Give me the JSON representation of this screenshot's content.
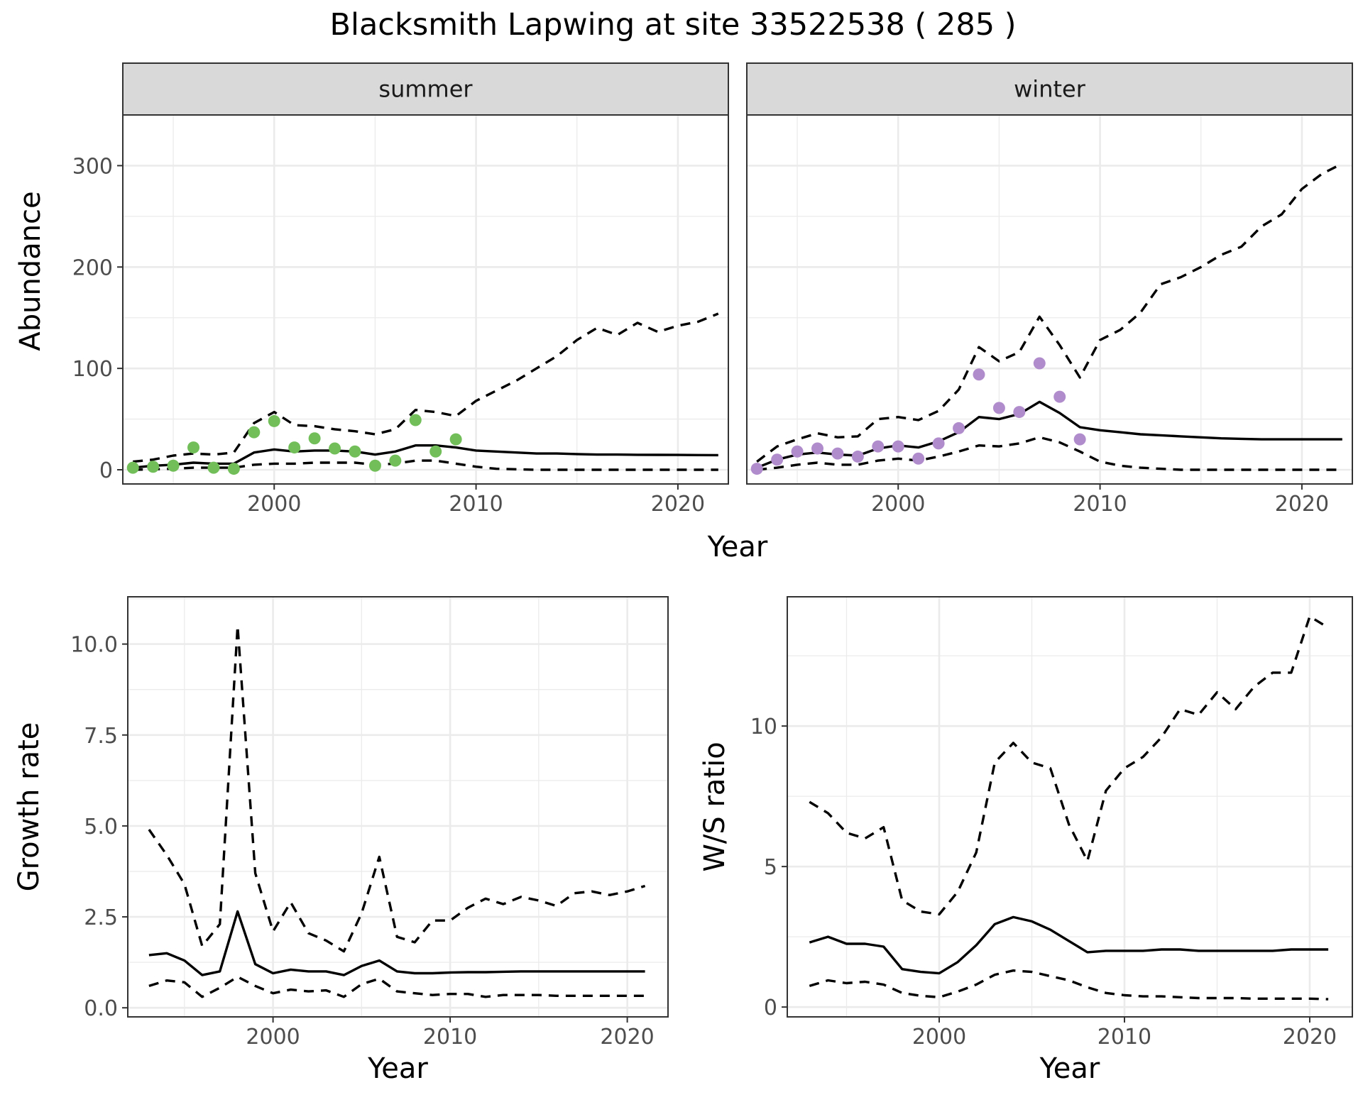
{
  "title": "Blacksmith Lapwing at site 33522538 ( 285 )",
  "colors": {
    "summer_points": "#72bf5a",
    "winter_points": "#b08ccc",
    "strip_background": "#d9d9d9",
    "grid": "#ebebeb"
  },
  "chart_data": [
    {
      "type": "line",
      "facet": "summer",
      "xlabel": "Year",
      "ylabel": "Abundance",
      "xlim": [
        1992.5,
        2022.5
      ],
      "ylim": [
        -14,
        350
      ],
      "xticks": [
        2000,
        2010,
        2020
      ],
      "yticks": [
        0,
        100,
        200,
        300
      ],
      "grid": true,
      "series": [
        {
          "role": "estimate",
          "x": [
            1993,
            1994,
            1995,
            1996,
            1997,
            1998,
            1999,
            2000,
            2001,
            2002,
            2003,
            2004,
            2005,
            2006,
            2007,
            2008,
            2009,
            2010,
            2011,
            2012,
            2013,
            2014,
            2015,
            2016,
            2017,
            2018,
            2019,
            2020,
            2021,
            2022
          ],
          "y": [
            2,
            4,
            5,
            7,
            6,
            6,
            17,
            20,
            18,
            19,
            19,
            18,
            15,
            18,
            24,
            24,
            22,
            19,
            18,
            17,
            16,
            16,
            15.5,
            15,
            15,
            14.8,
            14.7,
            14.6,
            14.5,
            14.4
          ]
        },
        {
          "role": "lower",
          "x": [
            1993,
            1994,
            1995,
            1996,
            1997,
            1998,
            1999,
            2000,
            2001,
            2002,
            2003,
            2004,
            2005,
            2006,
            2007,
            2008,
            2009,
            2010,
            2011,
            2012,
            2013,
            2014,
            2015,
            2016,
            2017,
            2018,
            2019,
            2020,
            2021,
            2022
          ],
          "y": [
            0,
            0.5,
            1,
            2,
            2,
            2,
            5,
            6,
            6,
            7,
            7,
            7,
            5,
            6,
            9,
            9,
            6,
            3,
            1,
            0.5,
            0,
            0,
            0,
            0,
            0,
            0,
            0,
            0,
            0,
            0
          ]
        },
        {
          "role": "upper",
          "x": [
            1993,
            1994,
            1995,
            1996,
            1997,
            1998,
            1999,
            2000,
            2001,
            2002,
            2003,
            2004,
            2005,
            2006,
            2007,
            2008,
            2009,
            2010,
            2011,
            2012,
            2013,
            2014,
            2015,
            2016,
            2017,
            2018,
            2019,
            2020,
            2021,
            2022
          ],
          "y": [
            8,
            10,
            14,
            16,
            15,
            17,
            46,
            57,
            44,
            43,
            40,
            38,
            35,
            40,
            59,
            57,
            53,
            68,
            78,
            88,
            100,
            112,
            128,
            140,
            133,
            145,
            136,
            142,
            146,
            154
          ]
        },
        {
          "role": "observed",
          "x": [
            1993,
            1994,
            1995,
            1996,
            1997,
            1998,
            1999,
            2000,
            2001,
            2002,
            2003,
            2004,
            2005,
            2006,
            2007,
            2008,
            2009
          ],
          "y": [
            2,
            3,
            4,
            22,
            2,
            1,
            37,
            48,
            22,
            31,
            21,
            18,
            4,
            9,
            49,
            18,
            30
          ]
        }
      ]
    },
    {
      "type": "line",
      "facet": "winter",
      "xlabel": "Year",
      "ylabel": "Abundance",
      "xlim": [
        1992.5,
        2022.5
      ],
      "ylim": [
        -14,
        350
      ],
      "xticks": [
        2000,
        2010,
        2020
      ],
      "yticks": [
        0,
        100,
        200,
        300
      ],
      "grid": true,
      "series": [
        {
          "role": "estimate",
          "x": [
            1993,
            1994,
            1995,
            1996,
            1997,
            1998,
            1999,
            2000,
            2001,
            2002,
            2003,
            2004,
            2005,
            2006,
            2007,
            2008,
            2009,
            2010,
            2011,
            2012,
            2013,
            2014,
            2015,
            2016,
            2017,
            2018,
            2019,
            2020,
            2021,
            2022
          ],
          "y": [
            2,
            10,
            15,
            17,
            15,
            14,
            21,
            24,
            22,
            28,
            37,
            52,
            50,
            55,
            67,
            56,
            42,
            39,
            37,
            35,
            34,
            33,
            32,
            31,
            30.5,
            30,
            30,
            30,
            30,
            30
          ]
        },
        {
          "role": "lower",
          "x": [
            1993,
            1994,
            1995,
            1996,
            1997,
            1998,
            1999,
            2000,
            2001,
            2002,
            2003,
            2004,
            2005,
            2006,
            2007,
            2008,
            2009,
            2010,
            2011,
            2012,
            2013,
            2014,
            2015,
            2016,
            2017,
            2018,
            2019,
            2020,
            2021,
            2022
          ],
          "y": [
            0,
            2,
            5,
            7,
            5,
            5,
            9,
            11,
            9,
            13,
            18,
            24,
            23,
            26,
            32,
            27,
            18,
            8,
            4,
            2,
            1,
            0,
            0,
            0,
            0,
            0,
            0,
            0,
            0,
            0
          ]
        },
        {
          "role": "upper",
          "x": [
            1993,
            1994,
            1995,
            1996,
            1997,
            1998,
            1999,
            2000,
            2001,
            2002,
            2003,
            2004,
            2005,
            2006,
            2007,
            2008,
            2009,
            2010,
            2011,
            2012,
            2013,
            2014,
            2015,
            2016,
            2017,
            2018,
            2019,
            2020,
            2021,
            2022
          ],
          "y": [
            8,
            23,
            30,
            36,
            32,
            33,
            50,
            52,
            49,
            58,
            79,
            121,
            107,
            116,
            151,
            123,
            91,
            128,
            138,
            155,
            183,
            190,
            200,
            212,
            220,
            240,
            252,
            277,
            292,
            302
          ]
        },
        {
          "role": "observed",
          "x": [
            1993,
            1994,
            1995,
            1996,
            1997,
            1998,
            1999,
            2000,
            2001,
            2002,
            2003,
            2004,
            2005,
            2006,
            2007,
            2008,
            2009
          ],
          "y": [
            1,
            10,
            18,
            21,
            16,
            13,
            23,
            23,
            11,
            26,
            41,
            94,
            61,
            57,
            105,
            72,
            30
          ]
        }
      ]
    },
    {
      "type": "line",
      "xlabel": "Year",
      "ylabel": "Growth rate",
      "xlim": [
        1991.8,
        2022.3
      ],
      "ylim": [
        -0.25,
        11.3
      ],
      "xticks": [
        2000,
        2010,
        2020
      ],
      "yticks": [
        0.0,
        2.5,
        5.0,
        7.5,
        10.0
      ],
      "ytick_labels": [
        "0.0",
        "2.5",
        "5.0",
        "7.5",
        "10.0"
      ],
      "grid": true,
      "series": [
        {
          "role": "estimate",
          "x": [
            1993,
            1994,
            1995,
            1996,
            1997,
            1998,
            1999,
            2000,
            2001,
            2002,
            2003,
            2004,
            2005,
            2006,
            2007,
            2008,
            2009,
            2010,
            2011,
            2012,
            2013,
            2014,
            2015,
            2016,
            2017,
            2018,
            2019,
            2020,
            2021
          ],
          "y": [
            1.45,
            1.5,
            1.3,
            0.9,
            1.0,
            2.65,
            1.2,
            0.95,
            1.05,
            1.0,
            1.0,
            0.9,
            1.15,
            1.3,
            1.0,
            0.95,
            0.95,
            0.97,
            0.98,
            0.98,
            0.99,
            1.0,
            1.0,
            1.0,
            1.0,
            1.0,
            1.0,
            1.0,
            1.0
          ]
        },
        {
          "role": "lower",
          "x": [
            1993,
            1994,
            1995,
            1996,
            1997,
            1998,
            1999,
            2000,
            2001,
            2002,
            2003,
            2004,
            2005,
            2006,
            2007,
            2008,
            2009,
            2010,
            2011,
            2012,
            2013,
            2014,
            2015,
            2016,
            2017,
            2018,
            2019,
            2020,
            2021
          ],
          "y": [
            0.6,
            0.75,
            0.7,
            0.3,
            0.55,
            0.85,
            0.6,
            0.4,
            0.5,
            0.45,
            0.48,
            0.3,
            0.65,
            0.8,
            0.45,
            0.4,
            0.35,
            0.38,
            0.38,
            0.3,
            0.35,
            0.35,
            0.35,
            0.33,
            0.33,
            0.33,
            0.33,
            0.33,
            0.33
          ]
        },
        {
          "role": "upper",
          "x": [
            1993,
            1994,
            1995,
            1996,
            1997,
            1998,
            1999,
            2000,
            2001,
            2002,
            2003,
            2004,
            2005,
            2006,
            2007,
            2008,
            2009,
            2010,
            2011,
            2012,
            2013,
            2014,
            2015,
            2016,
            2017,
            2018,
            2019,
            2020,
            2021
          ],
          "y": [
            4.9,
            4.2,
            3.4,
            1.7,
            2.3,
            10.5,
            3.7,
            2.1,
            2.9,
            2.05,
            1.85,
            1.55,
            2.6,
            4.15,
            1.95,
            1.8,
            2.4,
            2.4,
            2.75,
            3.0,
            2.85,
            3.05,
            2.95,
            2.8,
            3.15,
            3.2,
            3.1,
            3.2,
            3.35
          ]
        }
      ]
    },
    {
      "type": "line",
      "xlabel": "Year",
      "ylabel": "W/S ratio",
      "xlim": [
        1991.8,
        2022.3
      ],
      "ylim": [
        -0.35,
        14.6
      ],
      "xticks": [
        2000,
        2010,
        2020
      ],
      "yticks": [
        0,
        5,
        10
      ],
      "grid": true,
      "series": [
        {
          "role": "estimate",
          "x": [
            1993,
            1994,
            1995,
            1996,
            1997,
            1998,
            1999,
            2000,
            2001,
            2002,
            2003,
            2004,
            2005,
            2006,
            2007,
            2008,
            2009,
            2010,
            2011,
            2012,
            2013,
            2014,
            2015,
            2016,
            2017,
            2018,
            2019,
            2020,
            2021
          ],
          "y": [
            2.3,
            2.5,
            2.25,
            2.25,
            2.15,
            1.35,
            1.25,
            1.2,
            1.6,
            2.2,
            2.95,
            3.2,
            3.05,
            2.75,
            2.35,
            1.95,
            2.0,
            2.0,
            2.0,
            2.05,
            2.05,
            2.0,
            2.0,
            2.0,
            2.0,
            2.0,
            2.05,
            2.05,
            2.05
          ]
        },
        {
          "role": "lower",
          "x": [
            1993,
            1994,
            1995,
            1996,
            1997,
            1998,
            1999,
            2000,
            2001,
            2002,
            2003,
            2004,
            2005,
            2006,
            2007,
            2008,
            2009,
            2010,
            2011,
            2012,
            2013,
            2014,
            2015,
            2016,
            2017,
            2018,
            2019,
            2020,
            2021
          ],
          "y": [
            0.75,
            0.95,
            0.85,
            0.9,
            0.8,
            0.5,
            0.4,
            0.35,
            0.55,
            0.8,
            1.15,
            1.3,
            1.25,
            1.1,
            0.95,
            0.7,
            0.5,
            0.42,
            0.38,
            0.38,
            0.35,
            0.32,
            0.32,
            0.32,
            0.3,
            0.3,
            0.3,
            0.3,
            0.28
          ]
        },
        {
          "role": "upper",
          "x": [
            1993,
            1994,
            1995,
            1996,
            1997,
            1998,
            1999,
            2000,
            2001,
            2002,
            2003,
            2004,
            2005,
            2006,
            2007,
            2008,
            2009,
            2010,
            2011,
            2012,
            2013,
            2014,
            2015,
            2016,
            2017,
            2018,
            2019,
            2020,
            2021
          ],
          "y": [
            7.3,
            6.9,
            6.2,
            6.0,
            6.4,
            3.8,
            3.4,
            3.3,
            4.1,
            5.5,
            8.7,
            9.4,
            8.7,
            8.5,
            6.5,
            5.2,
            7.7,
            8.5,
            8.9,
            9.6,
            10.6,
            10.4,
            11.2,
            10.6,
            11.4,
            11.9,
            11.9,
            13.9,
            13.5
          ]
        }
      ]
    }
  ]
}
